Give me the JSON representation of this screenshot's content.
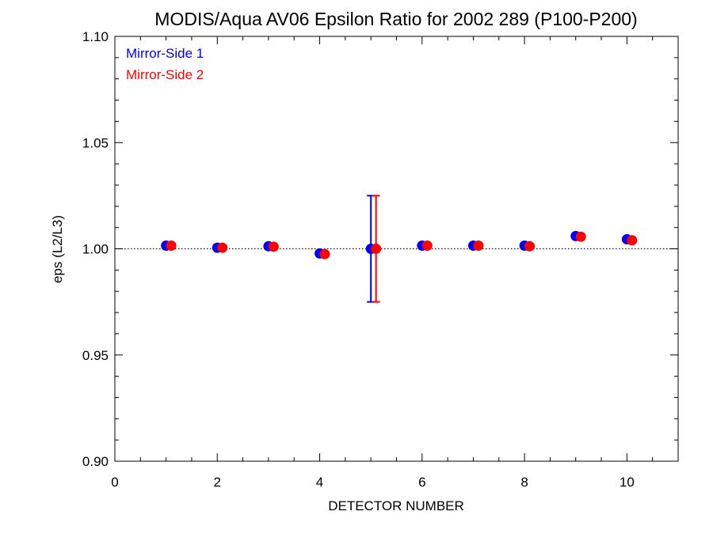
{
  "chart_data": {
    "type": "scatter",
    "title": "MODIS/Aqua AV06 Epsilon Ratio for 2002 289 (P100-P200)",
    "xlabel": "DETECTOR NUMBER",
    "ylabel": "eps (L2/L3)",
    "xlim": [
      0,
      11
    ],
    "ylim": [
      0.9,
      1.1
    ],
    "x_ticks": [
      0,
      2,
      4,
      6,
      8,
      10
    ],
    "x_tick_labels": [
      "0",
      "2",
      "4",
      "6",
      "8",
      "10"
    ],
    "y_ticks": [
      0.9,
      0.95,
      1.0,
      1.05,
      1.1
    ],
    "y_tick_labels": [
      "0.90",
      "0.95",
      "1.00",
      "1.05",
      "1.10"
    ],
    "reference_line": 1.0,
    "legend_position": "top-left",
    "series": [
      {
        "name": "Mirror-Side 1",
        "color": "#0000ff",
        "x": [
          1,
          2,
          3,
          4,
          5,
          6,
          7,
          8,
          9,
          10
        ],
        "y": [
          1.0015,
          1.0005,
          1.0012,
          0.9978,
          1.0,
          1.0015,
          1.0015,
          1.0015,
          1.006,
          1.0045
        ],
        "error_bars": [
          {
            "x": 5,
            "low": 0.975,
            "high": 1.025
          }
        ]
      },
      {
        "name": "Mirror-Side 2",
        "color": "#ff0000",
        "x": [
          1.1,
          2.1,
          3.1,
          4.1,
          5.1,
          6.1,
          7.1,
          8.1,
          9.1,
          10.1
        ],
        "y": [
          1.0015,
          1.0005,
          1.001,
          0.9975,
          1.0,
          1.0015,
          1.0015,
          1.0012,
          1.0057,
          1.004
        ],
        "error_bars": [
          {
            "x": 5.1,
            "low": 0.975,
            "high": 1.025
          }
        ]
      }
    ]
  }
}
